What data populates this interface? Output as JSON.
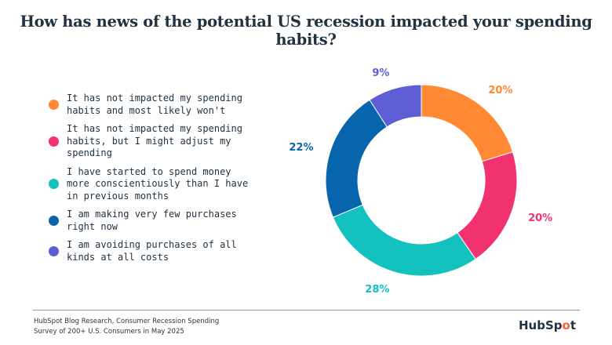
{
  "title": "How has news of the potential US recession impacted your spending habits?",
  "chart_data": {
    "type": "pie",
    "donut": true,
    "legend_placement": "left",
    "slices": [
      {
        "label": "It has not impacted my spending habits and most likely won't",
        "value": 20,
        "display": "20%",
        "color": "#ff8a33"
      },
      {
        "label": "It has not impacted my spending habits, but I might adjust my spending",
        "value": 20,
        "display": "20%",
        "color": "#f2316f"
      },
      {
        "label": "I have started to spend money more conscientiously than I have in previous months",
        "value": 28,
        "display": "28%",
        "color": "#13c1bf"
      },
      {
        "label": "I am making very few purchases right now",
        "value": 22,
        "display": "22%",
        "color": "#0765ae"
      },
      {
        "label": "I am avoiding purchases of all kinds at all costs",
        "value": 9,
        "display": "9%",
        "color": "#5d5ed6"
      }
    ]
  },
  "footer": {
    "source_line1": "HubSpot Blog Research, Consumer Recession Spending",
    "source_line2": "Survey of 200+ U.S. Consumers in May 2025",
    "logo": "HubSpot"
  }
}
